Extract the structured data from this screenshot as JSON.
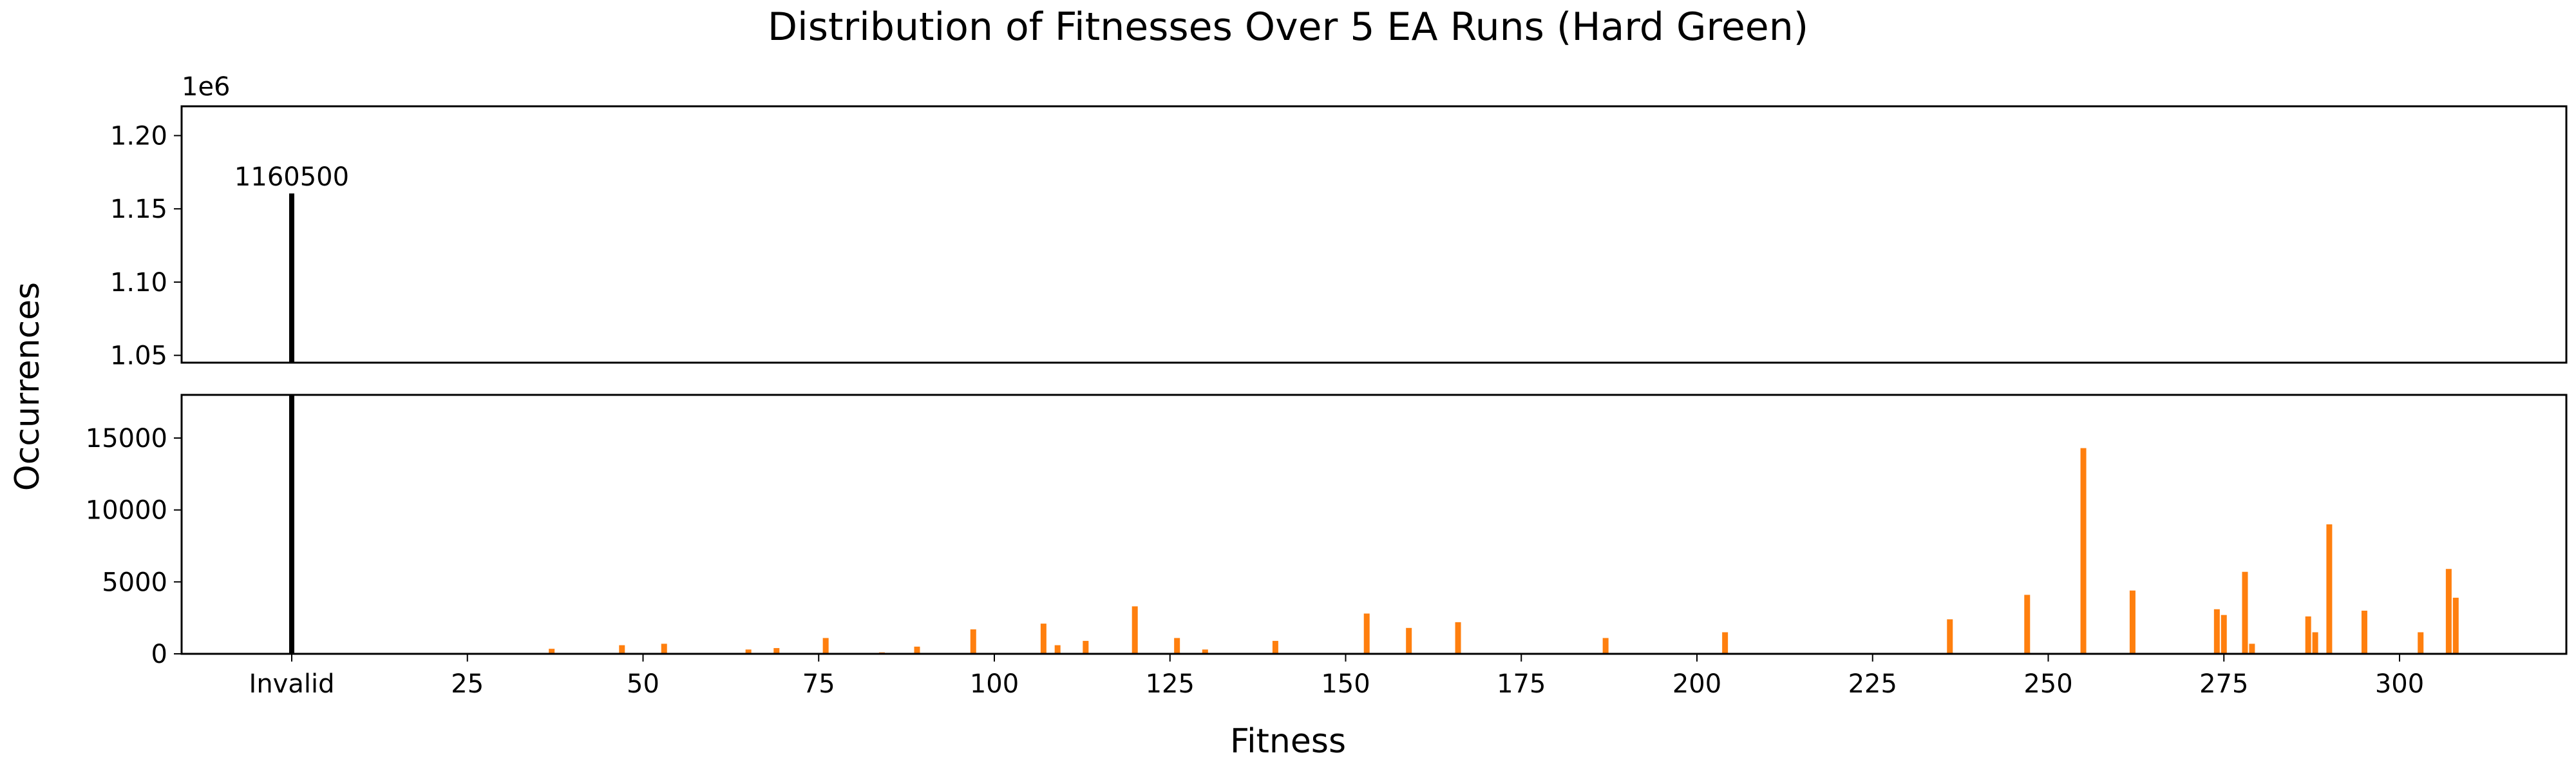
{
  "chart_data": {
    "type": "bar",
    "title": "Distribution of Fitnesses Over 5 EA Runs (Hard Green)",
    "xlabel": "Fitness",
    "ylabel": "Occurrences",
    "broken_y_axis": true,
    "x_special_category": "Invalid",
    "x_ticks": [
      "Invalid",
      "25",
      "50",
      "75",
      "100",
      "125",
      "150",
      "175",
      "200",
      "225",
      "250",
      "275",
      "300"
    ],
    "upper_panel": {
      "ylim": [
        1045000.0,
        1220000.0
      ],
      "yticks": [
        "1.05",
        "1.10",
        "1.15",
        "1.20"
      ],
      "offset_text": "1e6"
    },
    "lower_panel": {
      "ylim": [
        0,
        18000
      ],
      "yticks": [
        "0",
        "5000",
        "10000",
        "15000"
      ]
    },
    "colors": {
      "invalid": "#000000",
      "valid": "#ff7f0e"
    },
    "annotation": "1160500",
    "invalid": {
      "label": "Invalid",
      "value": 1160500
    },
    "series": [
      {
        "x": [
          37,
          47,
          53,
          65,
          69,
          76,
          84,
          89,
          97,
          107,
          109,
          113,
          120,
          126,
          130,
          140,
          153,
          159,
          166,
          187,
          204,
          236,
          247,
          255,
          262,
          274,
          275,
          278,
          279,
          287,
          288,
          290,
          295,
          303,
          307,
          308
        ],
        "values": [
          350,
          600,
          700,
          300,
          400,
          1100,
          100,
          500,
          1700,
          2100,
          600,
          900,
          3300,
          1100,
          300,
          900,
          2800,
          1800,
          2200,
          1100,
          1500,
          2400,
          4100,
          14300,
          4400,
          3100,
          2700,
          5700,
          700,
          2600,
          1500,
          9000,
          3000,
          1500,
          5900,
          3900
        ]
      }
    ]
  }
}
